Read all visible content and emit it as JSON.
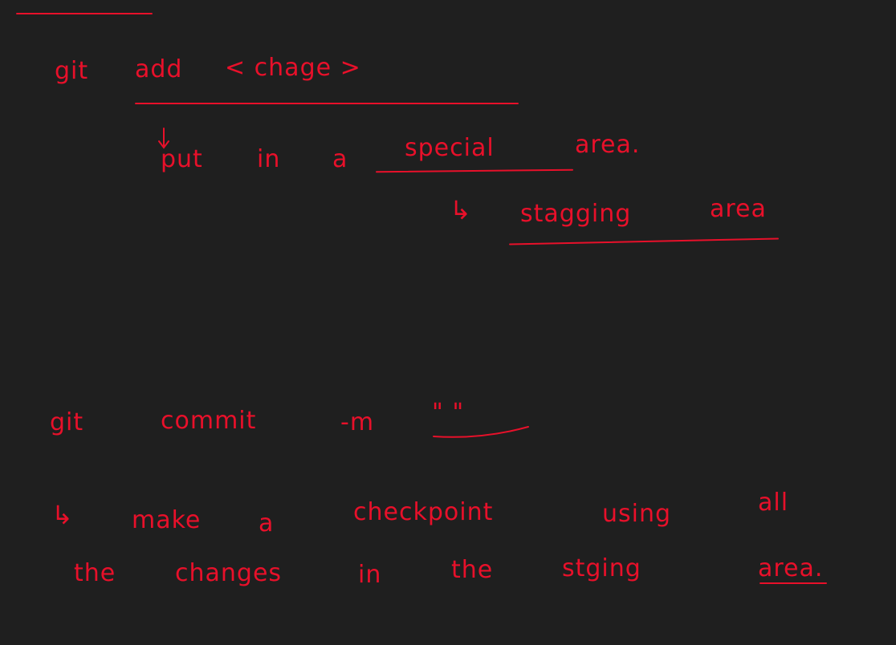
{
  "ink_color": "#e8102a",
  "background_color": "#1f1f1f",
  "note": {
    "line1": {
      "cmd": "git",
      "word": "add",
      "arg": "< chage >"
    },
    "line2": {
      "w1": "put",
      "w2": "in",
      "w3": "a",
      "w4": "special",
      "w5": "area."
    },
    "line3": {
      "arrow": "↳",
      "w1": "stagging",
      "w2": "area"
    },
    "line4": {
      "cmd": "git",
      "word": "commit",
      "flag": "-m",
      "quotes": "\" \""
    },
    "line5": {
      "arrow": "↳",
      "w1": "make",
      "w2": "a",
      "w3": "checkpoint",
      "w4": "using",
      "w5": "all"
    },
    "line6": {
      "w1": "the",
      "w2": "changes",
      "w3": "in",
      "w4": "the",
      "w5": "stging",
      "w6": "area."
    }
  }
}
